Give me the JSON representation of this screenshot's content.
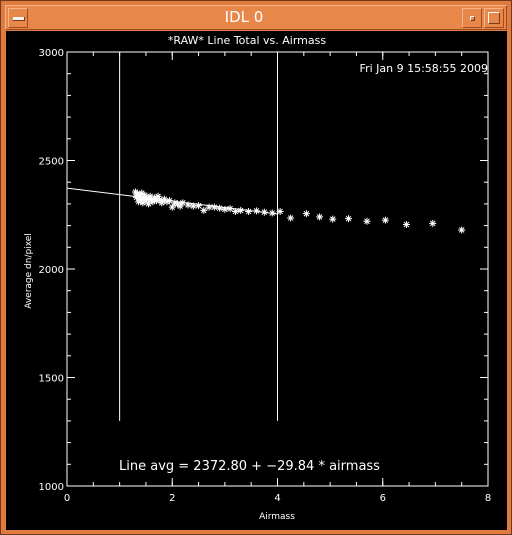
{
  "window": {
    "title": "IDL 0",
    "icons": {
      "menu": "system-menu-icon",
      "minimize": "minimize-icon",
      "maximize": "maximize-icon"
    },
    "colors": {
      "frame": "#e07a3e",
      "titlebar": "#e8874a",
      "plot_background": "#000000",
      "plot_foreground": "#ffffff"
    }
  },
  "chart_data": {
    "type": "scatter",
    "title": "*RAW* Line Total vs. Airmass",
    "timestamp": "Fri Jan  9 15:58:55 2009",
    "xlabel": "Airmass",
    "ylabel": "Average dn/pixel",
    "xlim": [
      0,
      8
    ],
    "ylim": [
      1000,
      3000
    ],
    "xticks": [
      "0",
      "2",
      "4",
      "6",
      "8"
    ],
    "yticks": [
      "1000",
      "1500",
      "2000",
      "2500",
      "3000"
    ],
    "grid": false,
    "marker": "asterisk",
    "vertical_lines": [
      1.0,
      4.0
    ],
    "fit": {
      "intercept": 2372.8,
      "slope": -29.84,
      "x_range": [
        0,
        4.0
      ]
    },
    "annotation": "Line avg = 2372.80 + −29.84 * airmass",
    "points": [
      [
        1.3,
        2355
      ],
      [
        1.32,
        2330
      ],
      [
        1.34,
        2345
      ],
      [
        1.36,
        2310
      ],
      [
        1.38,
        2335
      ],
      [
        1.4,
        2320
      ],
      [
        1.42,
        2350
      ],
      [
        1.44,
        2305
      ],
      [
        1.46,
        2330
      ],
      [
        1.48,
        2340
      ],
      [
        1.5,
        2315
      ],
      [
        1.52,
        2325
      ],
      [
        1.55,
        2300
      ],
      [
        1.58,
        2335
      ],
      [
        1.6,
        2320
      ],
      [
        1.63,
        2310
      ],
      [
        1.66,
        2328
      ],
      [
        1.7,
        2315
      ],
      [
        1.73,
        2335
      ],
      [
        1.76,
        2318
      ],
      [
        1.8,
        2305
      ],
      [
        1.85,
        2322
      ],
      [
        1.9,
        2310
      ],
      [
        1.95,
        2315
      ],
      [
        2.0,
        2285
      ],
      [
        2.05,
        2305
      ],
      [
        2.1,
        2300
      ],
      [
        2.15,
        2290
      ],
      [
        2.2,
        2305
      ],
      [
        2.3,
        2295
      ],
      [
        2.4,
        2290
      ],
      [
        2.5,
        2292
      ],
      [
        2.6,
        2270
      ],
      [
        2.7,
        2285
      ],
      [
        2.8,
        2285
      ],
      [
        2.9,
        2280
      ],
      [
        3.0,
        2275
      ],
      [
        3.1,
        2278
      ],
      [
        3.2,
        2265
      ],
      [
        3.3,
        2270
      ],
      [
        3.45,
        2265
      ],
      [
        3.6,
        2268
      ],
      [
        3.75,
        2262
      ],
      [
        3.9,
        2258
      ],
      [
        4.05,
        2265
      ],
      [
        4.25,
        2235
      ],
      [
        4.55,
        2255
      ],
      [
        4.8,
        2240
      ],
      [
        5.05,
        2230
      ],
      [
        5.35,
        2232
      ],
      [
        5.7,
        2220
      ],
      [
        6.05,
        2225
      ],
      [
        6.45,
        2205
      ],
      [
        6.95,
        2210
      ],
      [
        7.5,
        2180
      ]
    ]
  }
}
